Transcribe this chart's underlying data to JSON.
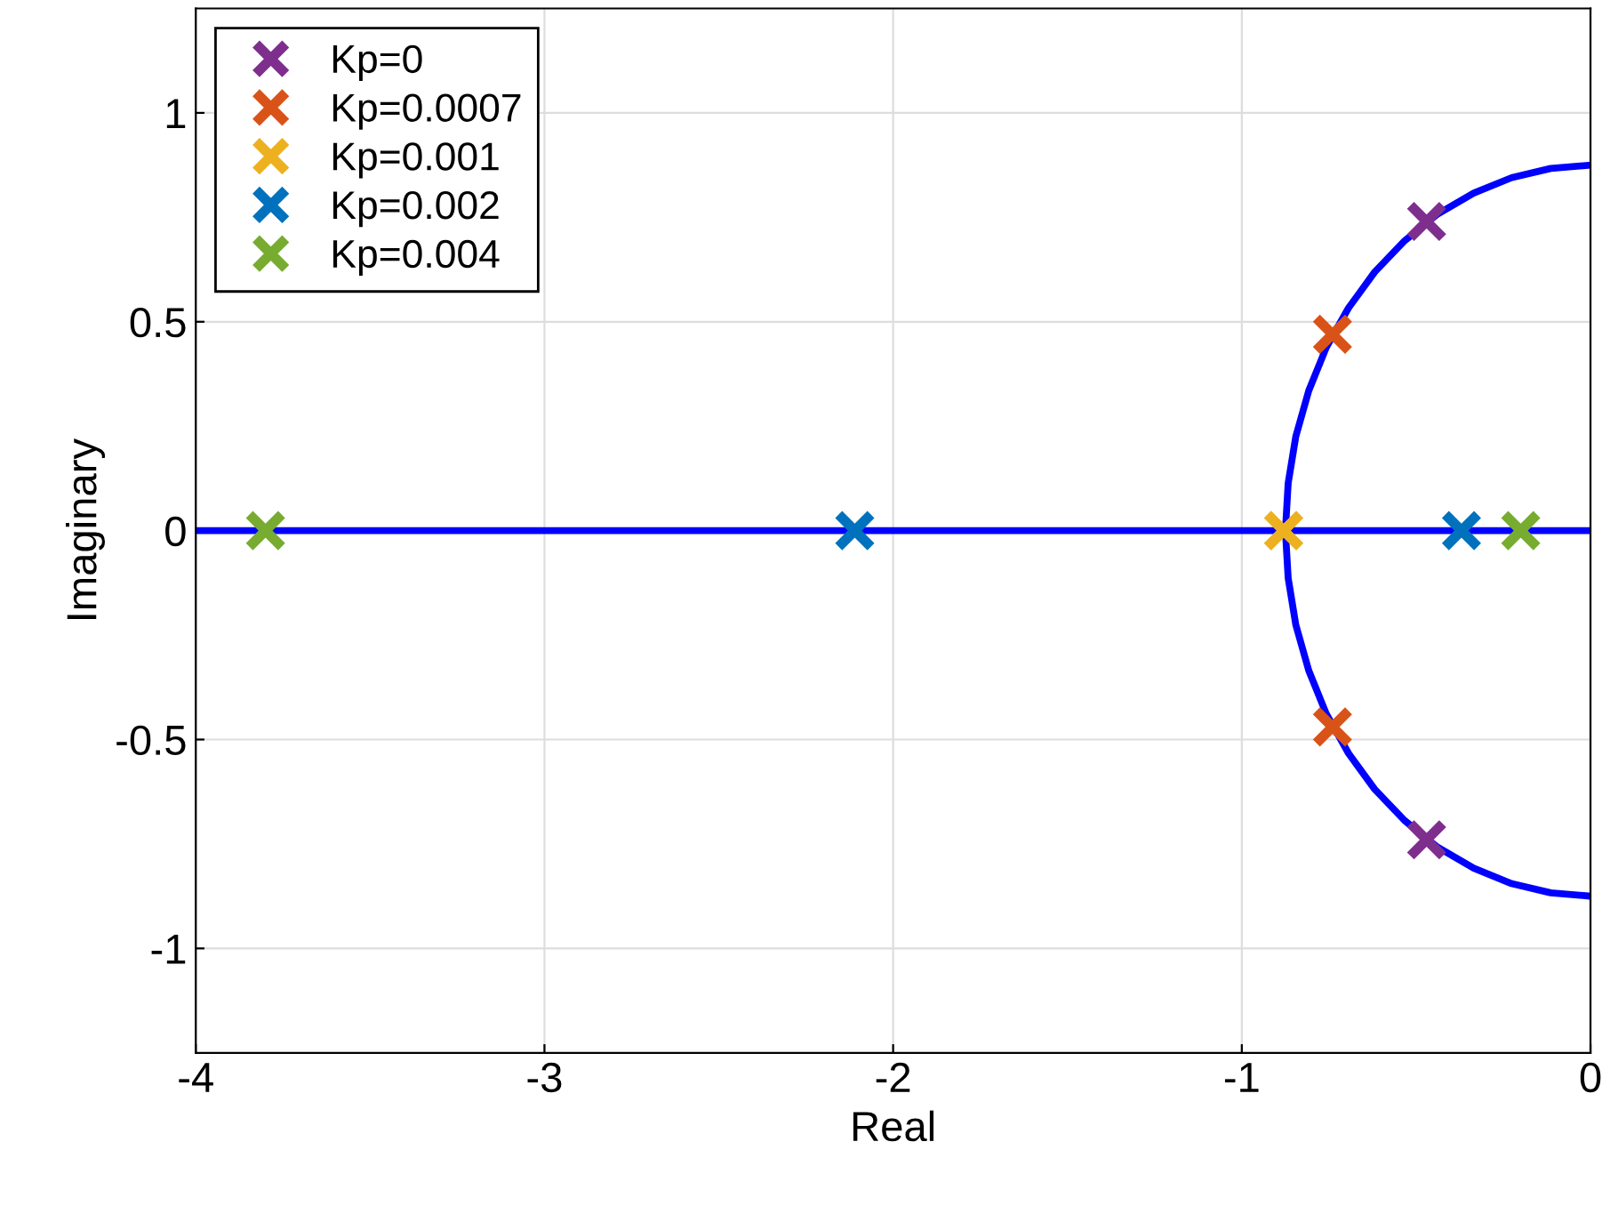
{
  "chart_data": {
    "type": "line",
    "xlabel": "Real",
    "ylabel": "Imaginary",
    "xlim": [
      -4,
      0
    ],
    "ylim": [
      -1.25,
      1.25
    ],
    "xticks": [
      -4,
      -3,
      -2,
      -1,
      0
    ],
    "yticks": [
      -1,
      -0.5,
      0,
      0.5,
      1
    ],
    "grid": true,
    "legend": "top left",
    "series": [
      {
        "color": "#0000ff",
        "x": [
          -4,
          0
        ],
        "values": [
          0,
          0
        ]
      },
      {
        "color": "#0000ff",
        "x": [
          0,
          -0.114,
          -0.226,
          -0.335,
          -0.438,
          -0.533,
          -0.619,
          -0.694,
          -0.758,
          -0.808,
          -0.845,
          -0.867,
          -0.875,
          -0.867,
          -0.845,
          -0.808,
          -0.758,
          -0.694,
          -0.619,
          -0.533,
          -0.438,
          -0.335,
          -0.226,
          -0.114,
          0
        ],
        "values": [
          0.875,
          0.867,
          0.845,
          0.808,
          0.758,
          0.694,
          0.619,
          0.533,
          0.438,
          0.335,
          0.226,
          0.114,
          0,
          -0.114,
          -0.226,
          -0.335,
          -0.438,
          -0.533,
          -0.619,
          -0.694,
          -0.758,
          -0.808,
          -0.845,
          -0.867,
          -0.875
        ]
      },
      {
        "type": "scatter",
        "marker": "cross",
        "name": "Kp=0",
        "color": "#7e2f8e",
        "x": [
          -0.47,
          -0.47
        ],
        "values": [
          0.74,
          -0.74
        ]
      },
      {
        "type": "scatter",
        "marker": "cross",
        "name": "Kp=0.0007",
        "color": "#d95319",
        "x": [
          -0.74,
          -0.74
        ],
        "values": [
          0.47,
          -0.47
        ]
      },
      {
        "type": "scatter",
        "marker": "cross",
        "name": "Kp=0.001",
        "color": "#edb120",
        "x": [
          -0.88,
          -0.88
        ],
        "values": [
          0,
          0
        ]
      },
      {
        "type": "scatter",
        "marker": "cross",
        "name": "Kp=0.002",
        "color": "#0072bd",
        "x": [
          -2.11,
          -0.37
        ],
        "values": [
          0,
          0
        ]
      },
      {
        "type": "scatter",
        "marker": "cross",
        "name": "Kp=0.004",
        "color": "#77ac30",
        "x": [
          -3.8,
          -0.2
        ],
        "values": [
          0,
          0
        ]
      }
    ]
  }
}
